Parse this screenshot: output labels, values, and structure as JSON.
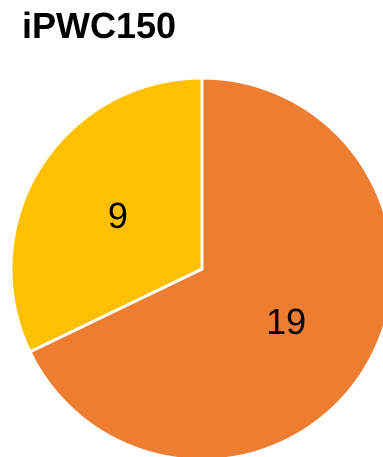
{
  "chart_data": {
    "type": "pie",
    "title": "iPWC150",
    "slices": [
      {
        "label": "19",
        "value": 19,
        "color": "#ED7D31"
      },
      {
        "label": "9",
        "value": 9,
        "color": "#FFC000"
      }
    ],
    "legend": "none"
  }
}
